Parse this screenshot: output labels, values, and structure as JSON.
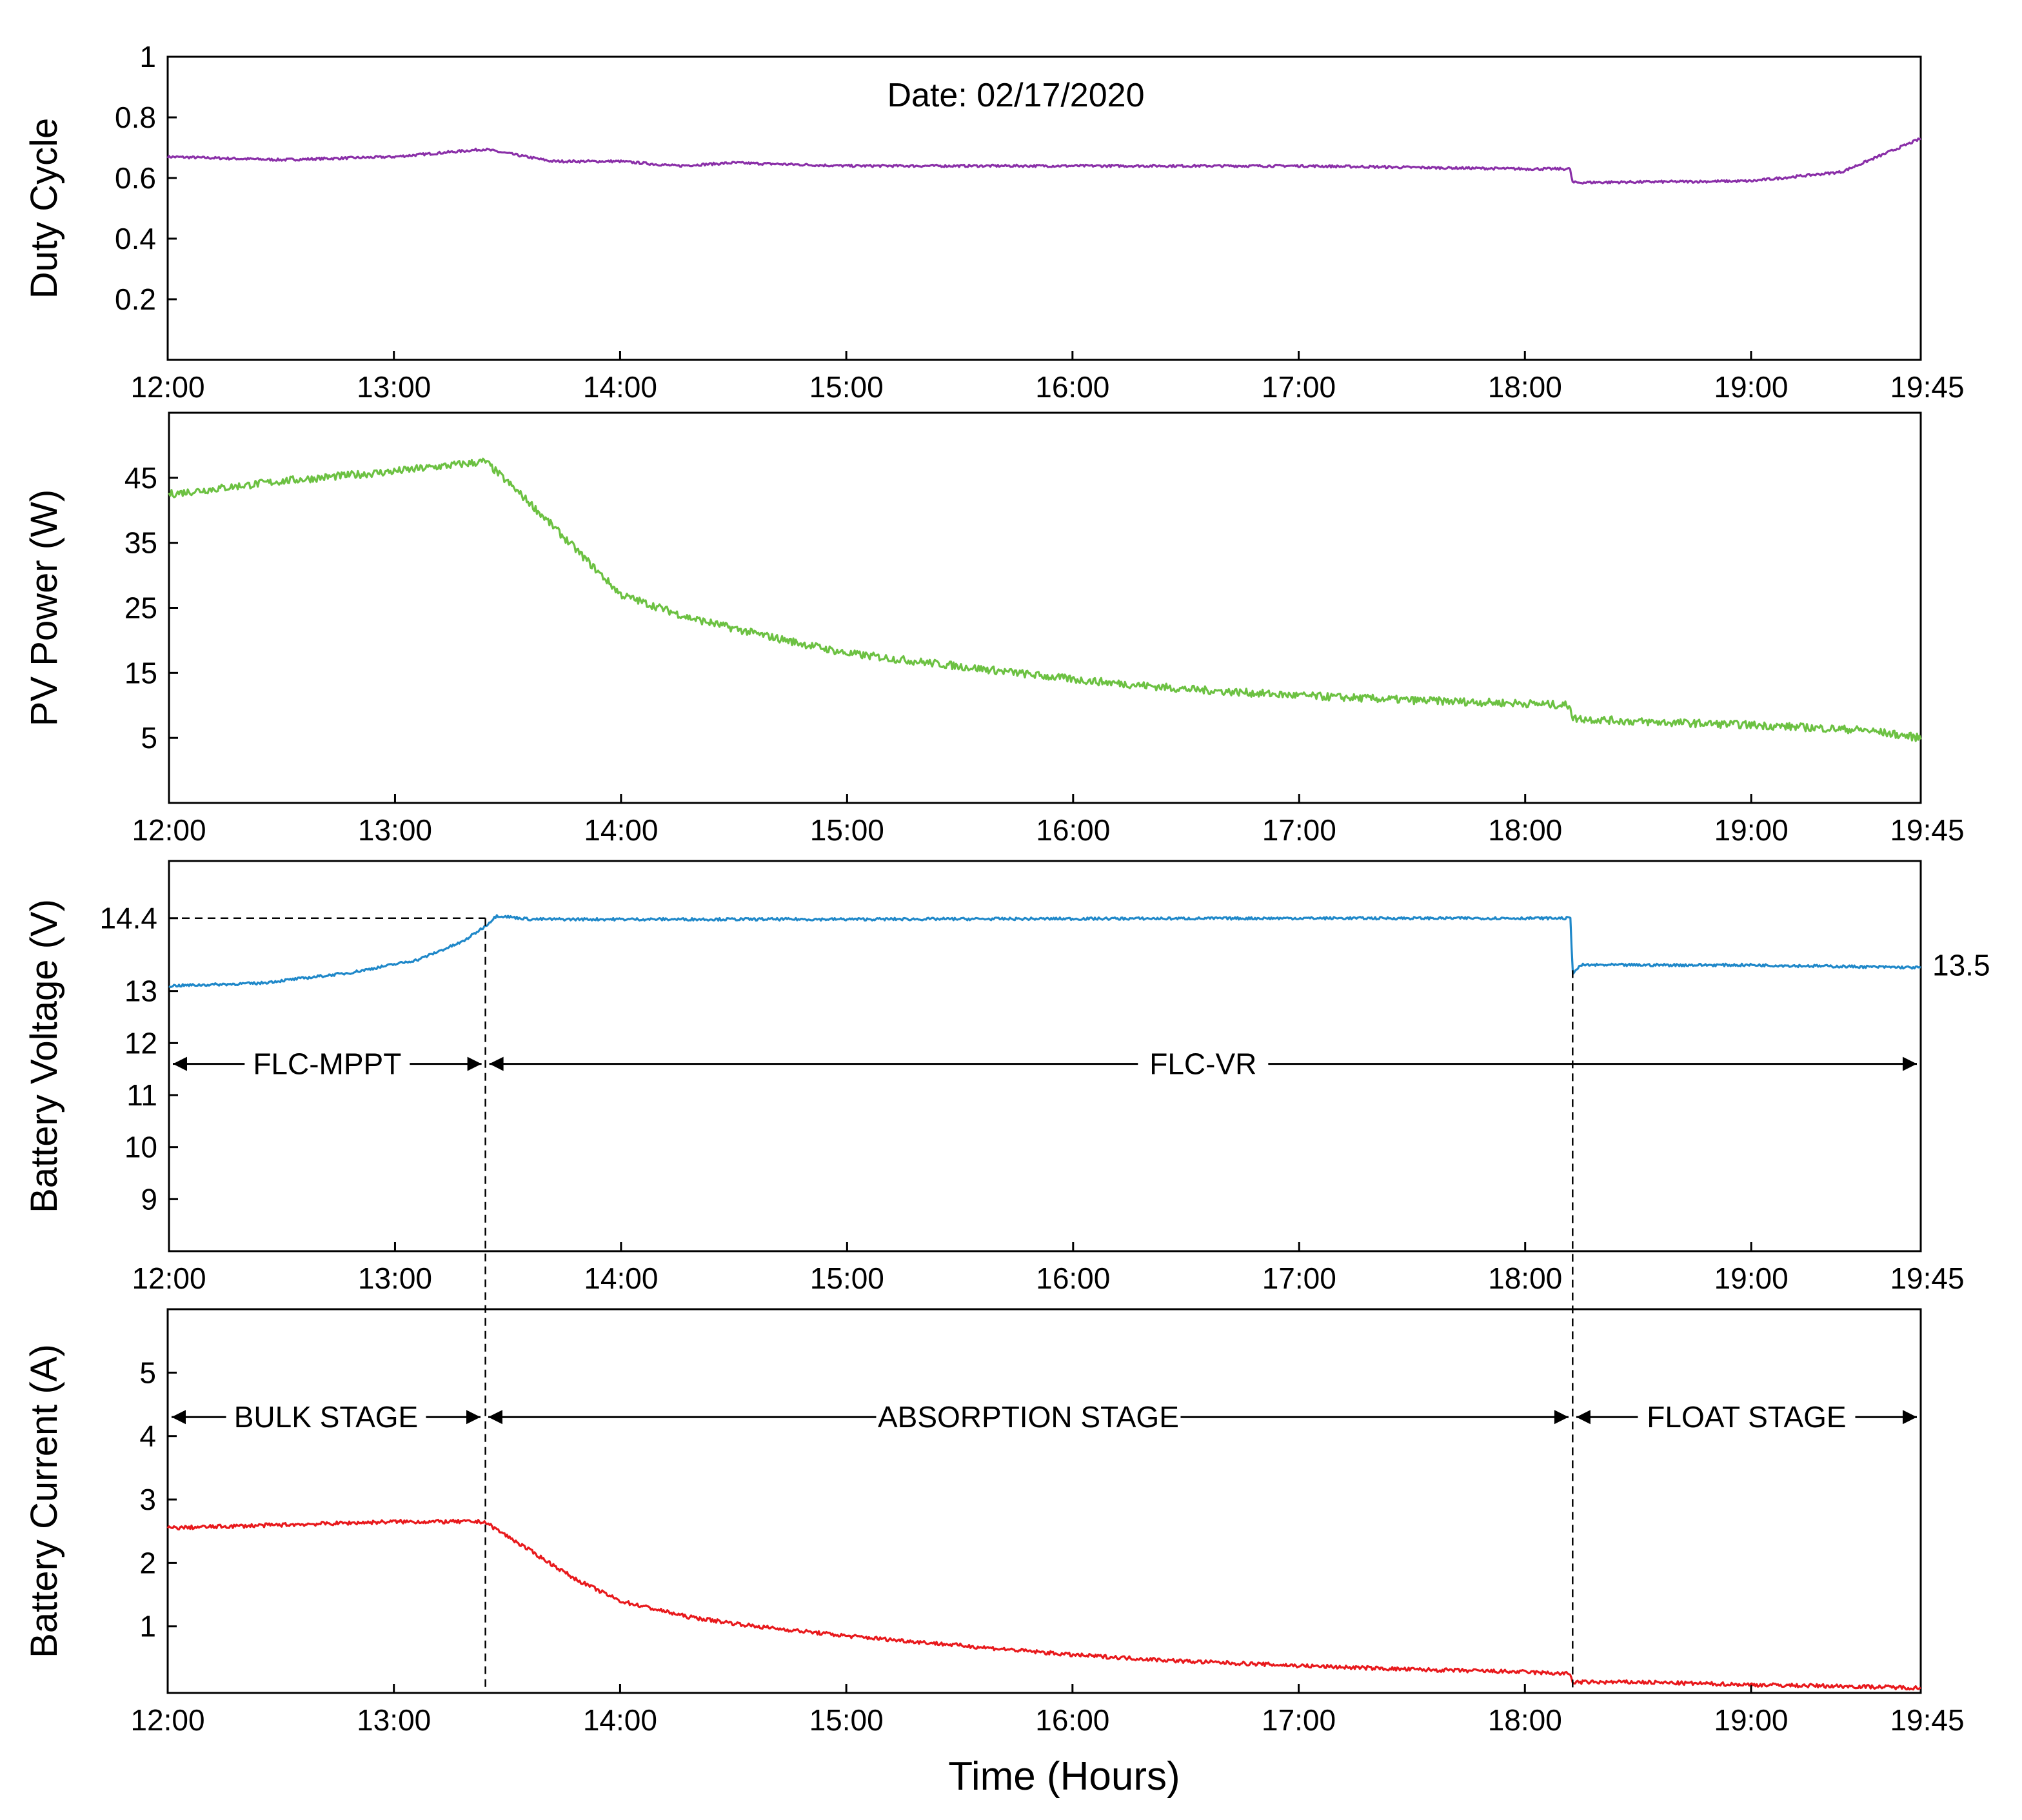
{
  "chart_data": [
    {
      "type": "line",
      "id": "duty",
      "ylabel": "Duty Cycle",
      "yticks": [
        0.2,
        0.4,
        0.6,
        0.8,
        1
      ],
      "ytick_labels": [
        "0.2",
        "0.4",
        "0.6",
        "0.8",
        "1"
      ],
      "ylim": [
        0,
        1
      ],
      "xlim": [
        0,
        7.75
      ],
      "xticks": [
        0,
        1,
        2,
        3,
        4,
        5,
        6,
        7,
        7.75
      ],
      "xtick_labels": [
        "12:00",
        "13:00",
        "14:00",
        "15:00",
        "16:00",
        "17:00",
        "18:00",
        "19:00",
        "19:45"
      ],
      "color": "#8a2fa8",
      "noise": 0.004,
      "series": [
        {
          "name": "Duty Cycle",
          "points": [
            [
              0,
              0.67
            ],
            [
              0.5,
              0.66
            ],
            [
              1.0,
              0.67
            ],
            [
              1.4,
              0.695
            ],
            [
              1.7,
              0.655
            ],
            [
              2.0,
              0.655
            ],
            [
              2.25,
              0.64
            ],
            [
              2.5,
              0.65
            ],
            [
              3.0,
              0.64
            ],
            [
              4.0,
              0.64
            ],
            [
              5.0,
              0.64
            ],
            [
              6.0,
              0.63
            ],
            [
              6.2,
              0.63
            ],
            [
              6.21,
              0.585
            ],
            [
              7.0,
              0.59
            ],
            [
              7.4,
              0.62
            ],
            [
              7.75,
              0.73
            ]
          ]
        }
      ],
      "annotations": [
        {
          "text": "Date: 02/17/2020"
        }
      ]
    },
    {
      "type": "line",
      "id": "power",
      "ylabel": "PV Power (W)",
      "yticks": [
        5,
        15,
        25,
        35,
        45
      ],
      "ytick_labels": [
        "5",
        "15",
        "25",
        "35",
        "45"
      ],
      "ylim": [
        -5,
        55
      ],
      "xlim": [
        0,
        7.75
      ],
      "xticks": [
        0,
        1,
        2,
        3,
        4,
        5,
        6,
        7,
        7.75
      ],
      "xtick_labels": [
        "12:00",
        "13:00",
        "14:00",
        "15:00",
        "16:00",
        "17:00",
        "18:00",
        "19:00",
        "19:45"
      ],
      "color": "#6cc142",
      "noise": 0.6,
      "series": [
        {
          "name": "PV Power",
          "points": [
            [
              0,
              42.5
            ],
            [
              0.5,
              44.5
            ],
            [
              1.0,
              46
            ],
            [
              1.4,
              47.5
            ],
            [
              1.6,
              41
            ],
            [
              1.8,
              34
            ],
            [
              2.0,
              27
            ],
            [
              2.3,
              23.5
            ],
            [
              2.6,
              21
            ],
            [
              3.0,
              18
            ],
            [
              3.5,
              16
            ],
            [
              4.0,
              14
            ],
            [
              4.5,
              12.5
            ],
            [
              5.0,
              11.5
            ],
            [
              5.5,
              10.8
            ],
            [
              6.0,
              10.3
            ],
            [
              6.2,
              10
            ],
            [
              6.21,
              8
            ],
            [
              6.5,
              7.5
            ],
            [
              7.0,
              7
            ],
            [
              7.5,
              6.2
            ],
            [
              7.75,
              5
            ]
          ]
        }
      ]
    },
    {
      "type": "line",
      "id": "voltage",
      "ylabel": "Battery Voltage (V)",
      "yticks": [
        9,
        10,
        11,
        12,
        13,
        14.4
      ],
      "ytick_labels": [
        "9",
        "10",
        "11",
        "12",
        "13",
        "14.4"
      ],
      "ylim": [
        8,
        15.5
      ],
      "xlim": [
        0,
        7.75
      ],
      "xticks": [
        0,
        1,
        2,
        3,
        4,
        5,
        6,
        7,
        7.75
      ],
      "xtick_labels": [
        "12:00",
        "13:00",
        "14:00",
        "15:00",
        "16:00",
        "17:00",
        "18:00",
        "19:00",
        "19:45"
      ],
      "color": "#1f88c9",
      "noise": 0.025,
      "series": [
        {
          "name": "Battery Voltage",
          "points": [
            [
              0,
              13.1
            ],
            [
              0.4,
              13.15
            ],
            [
              0.8,
              13.35
            ],
            [
              1.1,
              13.6
            ],
            [
              1.3,
              13.95
            ],
            [
              1.4,
              14.25
            ],
            [
              1.45,
              14.45
            ],
            [
              1.6,
              14.38
            ],
            [
              3.0,
              14.38
            ],
            [
              5.0,
              14.4
            ],
            [
              6.2,
              14.4
            ],
            [
              6.21,
              13.35
            ],
            [
              6.25,
              13.5
            ],
            [
              7.0,
              13.5
            ],
            [
              7.75,
              13.45
            ]
          ]
        }
      ],
      "ref_value": 14.4,
      "end_label": "13.5",
      "annotations": [
        {
          "text": "FLC-MPPT"
        },
        {
          "text": "FLC-VR"
        }
      ],
      "annotation_y": 11.6
    },
    {
      "type": "line",
      "id": "current",
      "ylabel": "Battery Current (A)",
      "yticks": [
        1,
        2,
        3,
        4,
        5
      ],
      "ytick_labels": [
        "1",
        "2",
        "3",
        "4",
        "5"
      ],
      "ylim": [
        -0.05,
        6
      ],
      "xlim": [
        0,
        7.75
      ],
      "xticks": [
        0,
        1,
        2,
        3,
        4,
        5,
        6,
        7,
        7.75
      ],
      "xtick_labels": [
        "12:00",
        "13:00",
        "14:00",
        "15:00",
        "16:00",
        "17:00",
        "18:00",
        "19:00",
        "19:45"
      ],
      "color": "#e8191c",
      "noise": 0.03,
      "series": [
        {
          "name": "Battery Current",
          "points": [
            [
              0,
              2.55
            ],
            [
              0.5,
              2.6
            ],
            [
              1.0,
              2.65
            ],
            [
              1.4,
              2.65
            ],
            [
              1.6,
              2.2
            ],
            [
              1.8,
              1.75
            ],
            [
              2.0,
              1.4
            ],
            [
              2.3,
              1.15
            ],
            [
              2.6,
              1.0
            ],
            [
              3.0,
              0.85
            ],
            [
              3.5,
              0.7
            ],
            [
              4.0,
              0.55
            ],
            [
              4.5,
              0.45
            ],
            [
              5.0,
              0.38
            ],
            [
              5.5,
              0.32
            ],
            [
              6.0,
              0.28
            ],
            [
              6.2,
              0.25
            ],
            [
              6.21,
              0.12
            ],
            [
              6.5,
              0.12
            ],
            [
              7.0,
              0.08
            ],
            [
              7.5,
              0.05
            ],
            [
              7.75,
              0.03
            ]
          ]
        }
      ],
      "annotations": [
        {
          "text": "BULK STAGE"
        },
        {
          "text": "ABSORPTION STAGE"
        },
        {
          "text": "FLOAT STAGE"
        }
      ],
      "annotation_y": 4.3
    }
  ],
  "stage_boundaries": [
    1.4,
    6.21
  ],
  "xlabel": "Time (Hours)"
}
